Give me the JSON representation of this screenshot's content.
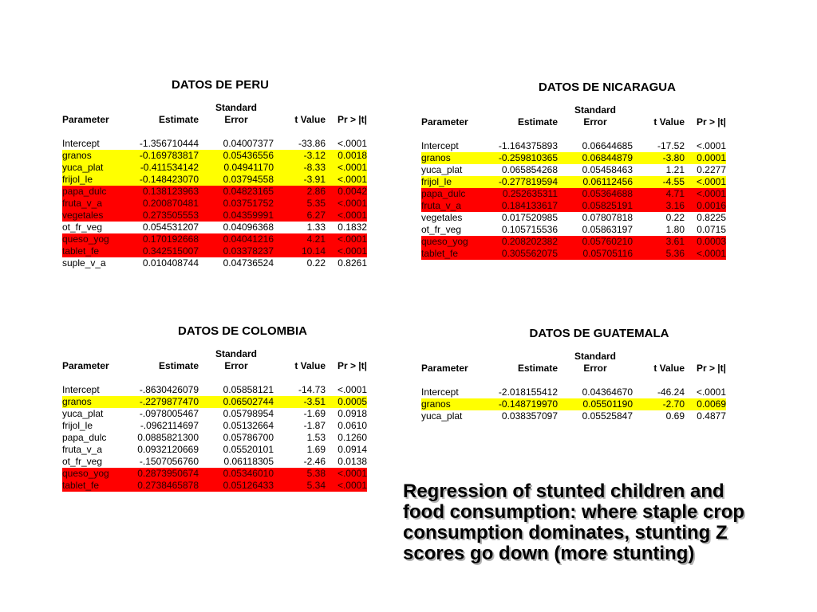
{
  "slide": {
    "background": "#ffffff",
    "caption": {
      "lines": [
        "Regression of stunted children and",
        "food consumption: where staple crop",
        "consumption dominates, stunting Z",
        "scores go down (more stunting)"
      ]
    }
  },
  "colors": {
    "hl-yellow": "#ffff00",
    "hl-red": "#ff0000",
    "red-row-text": "#2a0000",
    "caption-shadow": "#b3b3b3"
  },
  "table_headers": {
    "col1": "Parameter",
    "col2": "Estimate",
    "col3_line1": "Standard",
    "col3_line2": "Error",
    "col4": "t Value",
    "col5": "Pr > |t|"
  },
  "tables": [
    {
      "title": "DATOS DE PERU",
      "rows": [
        {
          "parameter": "Intercept",
          "estimate": "-1.356710444",
          "std_error": "0.04007377",
          "t_value": "-33.86",
          "pr_t": "<.0001",
          "highlight": "none"
        },
        {
          "parameter": "granos",
          "estimate": "-0.169783817",
          "std_error": "0.05436556",
          "t_value": "-3.12",
          "pr_t": "0.0018",
          "highlight": "yellow"
        },
        {
          "parameter": "yuca_plat",
          "estimate": "-0.411534142",
          "std_error": "0.04941170",
          "t_value": "-8.33",
          "pr_t": "<.0001",
          "highlight": "yellow"
        },
        {
          "parameter": "frijol_le",
          "estimate": "-0.148423070",
          "std_error": "0.03794558",
          "t_value": "-3.91",
          "pr_t": "<.0001",
          "highlight": "yellow"
        },
        {
          "parameter": "papa_dulc",
          "estimate": "0.138123963",
          "std_error": "0.04823165",
          "t_value": "2.86",
          "pr_t": "0.0042",
          "highlight": "red"
        },
        {
          "parameter": "fruta_v_a",
          "estimate": "0.200870481",
          "std_error": "0.03751752",
          "t_value": "5.35",
          "pr_t": "<.0001",
          "highlight": "red"
        },
        {
          "parameter": "vegetales",
          "estimate": "0.273505553",
          "std_error": "0.04359991",
          "t_value": "6.27",
          "pr_t": "<.0001",
          "highlight": "red"
        },
        {
          "parameter": "ot_fr_veg",
          "estimate": "0.054531207",
          "std_error": "0.04096368",
          "t_value": "1.33",
          "pr_t": "0.1832",
          "highlight": "none"
        },
        {
          "parameter": "queso_yog",
          "estimate": "0.170192668",
          "std_error": "0.04041216",
          "t_value": "4.21",
          "pr_t": "<.0001",
          "highlight": "red"
        },
        {
          "parameter": "tablet_fe",
          "estimate": "0.342515007",
          "std_error": "0.03378237",
          "t_value": "10.14",
          "pr_t": "<.0001",
          "highlight": "red"
        },
        {
          "parameter": "suple_v_a",
          "estimate": "0.010408744",
          "std_error": "0.04736524",
          "t_value": "0.22",
          "pr_t": "0.8261",
          "highlight": "none"
        }
      ]
    },
    {
      "title": "DATOS DE NICARAGUA",
      "rows": [
        {
          "parameter": "Intercept",
          "estimate": "-1.164375893",
          "std_error": "0.06644685",
          "t_value": "-17.52",
          "pr_t": "<.0001",
          "highlight": "none"
        },
        {
          "parameter": "granos",
          "estimate": "-0.259810365",
          "std_error": "0.06844879",
          "t_value": "-3.80",
          "pr_t": "0.0001",
          "highlight": "yellow"
        },
        {
          "parameter": "yuca_plat",
          "estimate": "0.065854268",
          "std_error": "0.05458463",
          "t_value": "1.21",
          "pr_t": "0.2277",
          "highlight": "none"
        },
        {
          "parameter": "frijol_le",
          "estimate": "-0.277819594",
          "std_error": "0.06112456",
          "t_value": "-4.55",
          "pr_t": "<.0001",
          "highlight": "yellow"
        },
        {
          "parameter": "papa_dulc",
          "estimate": "0.252635311",
          "std_error": "0.05364688",
          "t_value": "4.71",
          "pr_t": "<.0001",
          "highlight": "red"
        },
        {
          "parameter": "fruta_v_a",
          "estimate": "0.184133617",
          "std_error": "0.05825191",
          "t_value": "3.16",
          "pr_t": "0.0016",
          "highlight": "red"
        },
        {
          "parameter": "vegetales",
          "estimate": "0.017520985",
          "std_error": "0.07807818",
          "t_value": "0.22",
          "pr_t": "0.8225",
          "highlight": "none"
        },
        {
          "parameter": "ot_fr_veg",
          "estimate": "0.105715536",
          "std_error": "0.05863197",
          "t_value": "1.80",
          "pr_t": "0.0715",
          "highlight": "none"
        },
        {
          "parameter": "queso_yog",
          "estimate": "0.208202382",
          "std_error": "0.05760210",
          "t_value": "3.61",
          "pr_t": "0.0003",
          "highlight": "red"
        },
        {
          "parameter": "tablet_fe",
          "estimate": "0.305562075",
          "std_error": "0.05705116",
          "t_value": "5.36",
          "pr_t": "<.0001",
          "highlight": "red"
        }
      ]
    },
    {
      "title": "DATOS DE COLOMBIA",
      "rows": [
        {
          "parameter": "Intercept",
          "estimate": "-.8630426079",
          "std_error": "0.05858121",
          "t_value": "-14.73",
          "pr_t": "<.0001",
          "highlight": "none"
        },
        {
          "parameter": "granos",
          "estimate": "-.2279877470",
          "std_error": "0.06502744",
          "t_value": "-3.51",
          "pr_t": "0.0005",
          "highlight": "yellow"
        },
        {
          "parameter": "yuca_plat",
          "estimate": "-.0978005467",
          "std_error": "0.05798954",
          "t_value": "-1.69",
          "pr_t": "0.0918",
          "highlight": "none"
        },
        {
          "parameter": "frijol_le",
          "estimate": "-.0962114697",
          "std_error": "0.05132664",
          "t_value": "-1.87",
          "pr_t": "0.0610",
          "highlight": "none"
        },
        {
          "parameter": "papa_dulc",
          "estimate": "0.0885821300",
          "std_error": "0.05786700",
          "t_value": "1.53",
          "pr_t": "0.1260",
          "highlight": "none"
        },
        {
          "parameter": "fruta_v_a",
          "estimate": "0.0932120669",
          "std_error": "0.05520101",
          "t_value": "1.69",
          "pr_t": "0.0914",
          "highlight": "none"
        },
        {
          "parameter": "ot_fr_veg",
          "estimate": "-.1507056760",
          "std_error": "0.06118305",
          "t_value": "-2.46",
          "pr_t": "0.0138",
          "highlight": "none"
        },
        {
          "parameter": "queso_yog",
          "estimate": "0.2873950674",
          "std_error": "0.05346010",
          "t_value": "5.38",
          "pr_t": "<.0001",
          "highlight": "red"
        },
        {
          "parameter": "tablet_fe",
          "estimate": "0.2738465878",
          "std_error": "0.05126433",
          "t_value": "5.34",
          "pr_t": "<.0001",
          "highlight": "red"
        }
      ]
    },
    {
      "title": "DATOS DE GUATEMALA",
      "rows": [
        {
          "parameter": "Intercept",
          "estimate": "-2.018155412",
          "std_error": "0.04364670",
          "t_value": "-46.24",
          "pr_t": "<.0001",
          "highlight": "none"
        },
        {
          "parameter": "granos",
          "estimate": "-0.148719970",
          "std_error": "0.05501190",
          "t_value": "-2.70",
          "pr_t": "0.0069",
          "highlight": "yellow"
        },
        {
          "parameter": "yuca_plat",
          "estimate": "0.038357097",
          "std_error": "0.05525847",
          "t_value": "0.69",
          "pr_t": "0.4877",
          "highlight": "none"
        }
      ]
    }
  ]
}
